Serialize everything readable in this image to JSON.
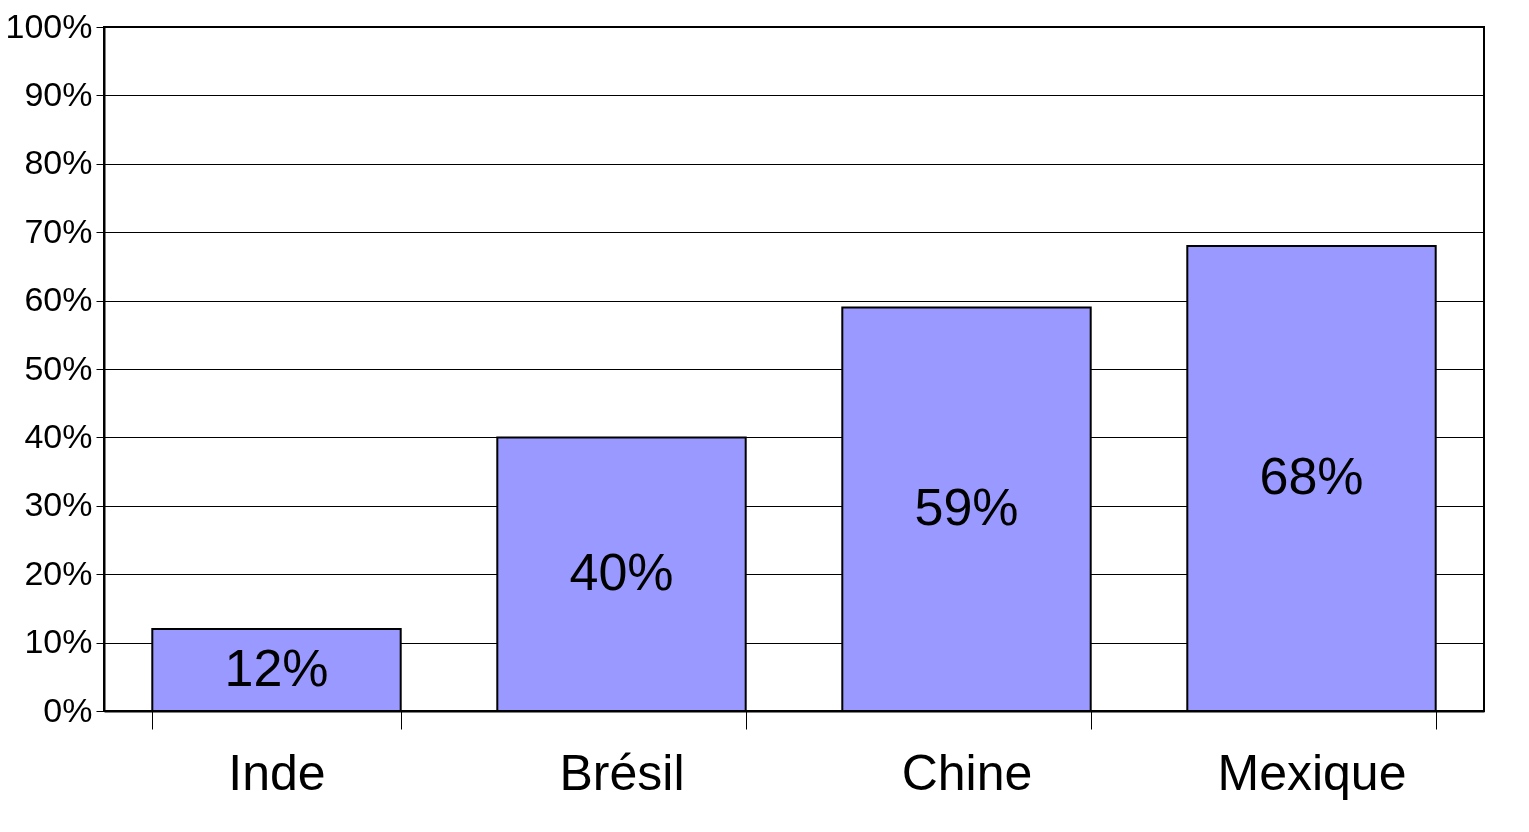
{
  "chart_data": {
    "type": "bar",
    "categories": [
      "Inde",
      "Brésil",
      "Chine",
      "Mexique"
    ],
    "values": [
      12,
      40,
      59,
      68
    ],
    "value_labels": [
      "12%",
      "40%",
      "59%",
      "68%"
    ],
    "color": "#9999ff",
    "ylim": [
      0,
      100
    ],
    "yticks": [
      {
        "value": 0,
        "label": "0%"
      },
      {
        "value": 10,
        "label": "10%"
      },
      {
        "value": 20,
        "label": "20%"
      },
      {
        "value": 30,
        "label": "30%"
      },
      {
        "value": 40,
        "label": "40%"
      },
      {
        "value": 50,
        "label": "50%"
      },
      {
        "value": 60,
        "label": "60%"
      },
      {
        "value": 70,
        "label": "70%"
      },
      {
        "value": 80,
        "label": "80%"
      },
      {
        "value": 90,
        "label": "90%"
      },
      {
        "value": 100,
        "label": "100%"
      }
    ],
    "grid": "y"
  }
}
